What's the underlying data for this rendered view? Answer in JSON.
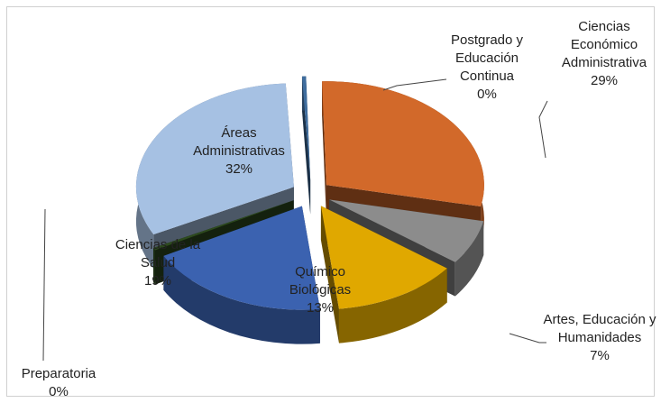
{
  "chart_data": {
    "type": "pie3d",
    "categories": [
      "Postgrado y Educación Continua",
      "Ciencias Económico Administrativa",
      "Artes, Educación y Humanidades",
      "Químico Biológicas",
      "Ciencias de la Salud",
      "Preparatoria",
      "Áreas Administrativas"
    ],
    "values": [
      0.4,
      29,
      7,
      13,
      19,
      0.4,
      32
    ],
    "value_labels": [
      "0%",
      "29%",
      "7%",
      "13%",
      "19%",
      "0%",
      "32%"
    ],
    "colors": [
      "#3f6d9e",
      "#d2692a",
      "#8c8c8c",
      "#e0a800",
      "#3b62b0",
      "#2d4a1e",
      "#a6c1e3"
    ],
    "exploded": true
  }
}
